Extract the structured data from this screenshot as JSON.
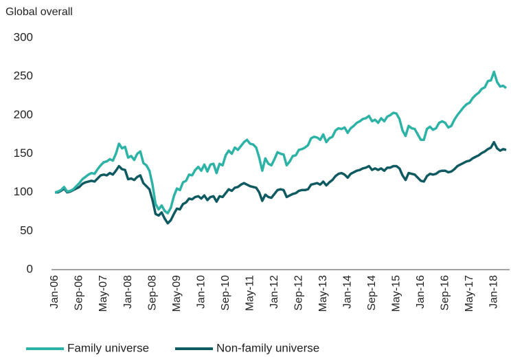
{
  "chart_data": {
    "type": "line",
    "title": "Global overall",
    "categories": [
      "Jan-06",
      null,
      null,
      null,
      null,
      null,
      null,
      null,
      "Sep-06",
      null,
      null,
      null,
      null,
      null,
      null,
      null,
      "May-07",
      null,
      null,
      null,
      null,
      null,
      null,
      null,
      "Jan-08",
      null,
      null,
      null,
      null,
      null,
      null,
      null,
      "Sep-08",
      null,
      null,
      null,
      null,
      null,
      null,
      null,
      "May-09",
      null,
      null,
      null,
      null,
      null,
      null,
      null,
      "Jan-10",
      null,
      null,
      null,
      null,
      null,
      null,
      null,
      "Sep-10",
      null,
      null,
      null,
      null,
      null,
      null,
      null,
      "May-11",
      null,
      null,
      null,
      null,
      null,
      null,
      null,
      "Jan-12",
      null,
      null,
      null,
      null,
      null,
      null,
      null,
      "Sep-12",
      null,
      null,
      null,
      null,
      null,
      null,
      null,
      "May-13",
      null,
      null,
      null,
      null,
      null,
      null,
      null,
      "Jan-14",
      null,
      null,
      null,
      null,
      null,
      null,
      null,
      "Sep-14",
      null,
      null,
      null,
      null,
      null,
      null,
      null,
      "May-15",
      null,
      null,
      null,
      null,
      null,
      null,
      null,
      "Jan-16",
      null,
      null,
      null,
      null,
      null,
      null,
      null,
      "Sep-16",
      null,
      null,
      null,
      null,
      null,
      null,
      null,
      "May-17",
      null,
      null,
      null,
      null,
      null,
      null,
      null,
      "Jan-18",
      null,
      null,
      null,
      null
    ],
    "series": [
      {
        "name": "Family universe",
        "color": "#2db3a6",
        "values": [
          100,
          101,
          103,
          107,
          101,
          102,
          104,
          108,
          112,
          117,
          120,
          123,
          125,
          124,
          130,
          135,
          139,
          140,
          143,
          141,
          150,
          163,
          157,
          159,
          145,
          147,
          142,
          150,
          153,
          138,
          135,
          128,
          110,
          85,
          78,
          83,
          76,
          73,
          80,
          95,
          105,
          103,
          113,
          115,
          123,
          122,
          129,
          133,
          128,
          136,
          127,
          136,
          137,
          125,
          137,
          135,
          148,
          154,
          150,
          158,
          155,
          160,
          165,
          168,
          163,
          162,
          158,
          145,
          128,
          144,
          137,
          135,
          143,
          152,
          150,
          149,
          135,
          140,
          147,
          148,
          155,
          156,
          158,
          161,
          170,
          172,
          171,
          168,
          175,
          165,
          170,
          172,
          180,
          183,
          182,
          184,
          177,
          183,
          186,
          190,
          192,
          195,
          196,
          199,
          192,
          194,
          190,
          196,
          192,
          198,
          200,
          203,
          202,
          195,
          180,
          173,
          186,
          183,
          182,
          175,
          168,
          168,
          182,
          185,
          181,
          183,
          190,
          192,
          190,
          184,
          186,
          194,
          200,
          205,
          210,
          214,
          216,
          222,
          226,
          229,
          234,
          236,
          244,
          245,
          256,
          243,
          237,
          238,
          235
        ]
      },
      {
        "name": "Non-family universe",
        "color": "#0e5a60",
        "values": [
          100,
          100,
          102,
          105,
          100,
          101,
          103,
          105,
          107,
          111,
          113,
          114,
          115,
          114,
          118,
          122,
          123,
          122,
          125,
          123,
          128,
          134,
          130,
          129,
          117,
          118,
          116,
          120,
          122,
          112,
          108,
          104,
          90,
          72,
          70,
          74,
          66,
          60,
          64,
          72,
          79,
          78,
          85,
          87,
          92,
          91,
          94,
          95,
          92,
          96,
          90,
          94,
          95,
          88,
          95,
          94,
          99,
          104,
          102,
          106,
          107,
          110,
          112,
          110,
          108,
          107,
          106,
          100,
          89,
          97,
          94,
          93,
          98,
          103,
          104,
          103,
          94,
          96,
          98,
          99,
          102,
          103,
          103,
          104,
          110,
          111,
          112,
          110,
          114,
          109,
          113,
          116,
          121,
          124,
          125,
          123,
          119,
          124,
          126,
          128,
          129,
          131,
          132,
          134,
          129,
          131,
          129,
          131,
          128,
          132,
          132,
          134,
          134,
          131,
          122,
          116,
          125,
          124,
          123,
          119,
          115,
          114,
          121,
          124,
          123,
          124,
          127,
          128,
          128,
          126,
          127,
          130,
          134,
          136,
          138,
          140,
          141,
          144,
          146,
          148,
          151,
          153,
          156,
          158,
          165,
          157,
          154,
          156,
          155
        ]
      }
    ],
    "ylim": [
      0,
      300
    ],
    "yticks": [
      0,
      50,
      100,
      150,
      200,
      250,
      300
    ],
    "grid": false,
    "legend": "bottom"
  }
}
